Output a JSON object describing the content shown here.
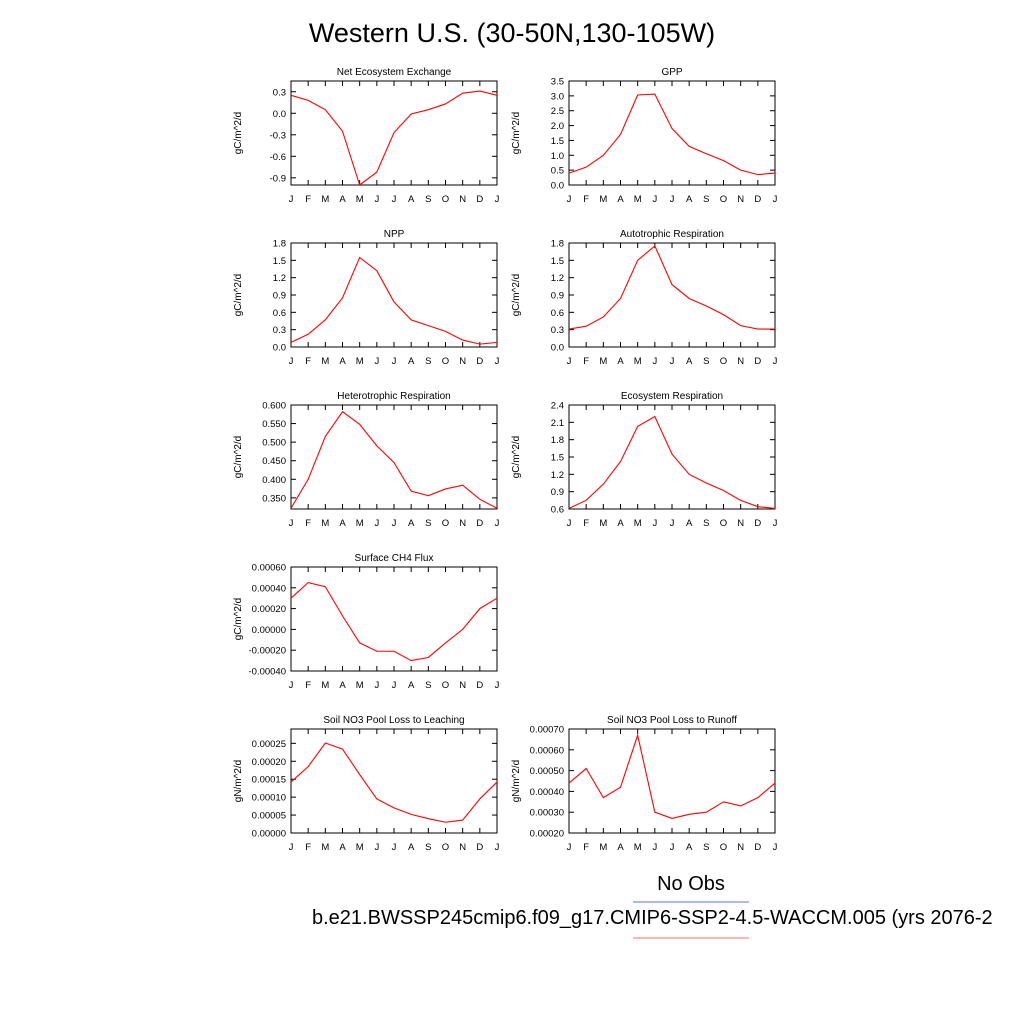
{
  "page": {
    "title": "Western U.S. (30-50N,130-105W)"
  },
  "legend": {
    "items": [
      {
        "label": "No Obs",
        "color": "#5b6ef0"
      },
      {
        "label": "b.e21.BWSSP245cmip6.f09_g17.CMIP6-SSP2-4.5-WACCM.005 (yrs 2076-2",
        "color": "#ff6b6b"
      }
    ]
  },
  "chart_data": [
    {
      "type": "line",
      "title": "Net Ecosystem Exchange",
      "ylabel": "gC/m^2/d",
      "categories": [
        "J",
        "F",
        "M",
        "A",
        "M",
        "J",
        "J",
        "A",
        "S",
        "O",
        "N",
        "D",
        "J"
      ],
      "ylim": [
        -1.0,
        0.45
      ],
      "yticks": [
        -0.9,
        -0.6,
        -0.3,
        0.0,
        0.3
      ],
      "ytick_labels": [
        "-0.9",
        "-0.6",
        "-0.3",
        "0.0",
        "0.3"
      ],
      "series": [
        {
          "values": [
            0.25,
            0.18,
            0.05,
            -0.25,
            -1.0,
            -0.82,
            -0.27,
            -0.01,
            0.05,
            0.13,
            0.28,
            0.31,
            0.25
          ],
          "color": "#ff0000"
        }
      ]
    },
    {
      "type": "line",
      "title": "GPP",
      "ylabel": "gC/m^2/d",
      "categories": [
        "J",
        "F",
        "M",
        "A",
        "M",
        "J",
        "J",
        "A",
        "S",
        "O",
        "N",
        "D",
        "J"
      ],
      "ylim": [
        0.0,
        3.5
      ],
      "yticks": [
        0.0,
        0.5,
        1.0,
        1.5,
        2.0,
        2.5,
        3.0,
        3.5
      ],
      "ytick_labels": [
        "0.0",
        "0.5",
        "1.0",
        "1.5",
        "2.0",
        "2.5",
        "3.0",
        "3.5"
      ],
      "series": [
        {
          "values": [
            0.4,
            0.6,
            1.0,
            1.7,
            3.03,
            3.06,
            1.9,
            1.3,
            1.05,
            0.82,
            0.5,
            0.35,
            0.4
          ],
          "color": "#ff0000"
        }
      ]
    },
    {
      "type": "line",
      "title": "NPP",
      "ylabel": "gC/m^2/d",
      "categories": [
        "J",
        "F",
        "M",
        "A",
        "M",
        "J",
        "J",
        "A",
        "S",
        "O",
        "N",
        "D",
        "J"
      ],
      "ylim": [
        0.0,
        1.8
      ],
      "yticks": [
        0.0,
        0.3,
        0.6,
        0.9,
        1.2,
        1.5,
        1.8
      ],
      "ytick_labels": [
        "0.0",
        "0.3",
        "0.6",
        "0.9",
        "1.2",
        "1.5",
        "1.8"
      ],
      "series": [
        {
          "values": [
            0.08,
            0.22,
            0.47,
            0.85,
            1.55,
            1.32,
            0.78,
            0.47,
            0.37,
            0.27,
            0.12,
            0.05,
            0.08
          ],
          "color": "#ff0000"
        }
      ]
    },
    {
      "type": "line",
      "title": "Autotrophic Respiration",
      "ylabel": "gC/m^2/d",
      "categories": [
        "J",
        "F",
        "M",
        "A",
        "M",
        "J",
        "J",
        "A",
        "S",
        "O",
        "N",
        "D",
        "J"
      ],
      "ylim": [
        0.0,
        1.8
      ],
      "yticks": [
        0.0,
        0.3,
        0.6,
        0.9,
        1.2,
        1.5,
        1.8
      ],
      "ytick_labels": [
        "0.0",
        "0.3",
        "0.6",
        "0.9",
        "1.2",
        "1.5",
        "1.8"
      ],
      "series": [
        {
          "values": [
            0.31,
            0.36,
            0.52,
            0.84,
            1.5,
            1.75,
            1.08,
            0.84,
            0.71,
            0.56,
            0.37,
            0.31,
            0.31
          ],
          "color": "#ff0000"
        }
      ]
    },
    {
      "type": "line",
      "title": "Heterotrophic Respiration",
      "ylabel": "gC/m^2/d",
      "categories": [
        "J",
        "F",
        "M",
        "A",
        "M",
        "J",
        "J",
        "A",
        "S",
        "O",
        "N",
        "D",
        "J"
      ],
      "ylim": [
        0.32,
        0.6
      ],
      "yticks": [
        0.35,
        0.4,
        0.45,
        0.5,
        0.55,
        0.6
      ],
      "ytick_labels": [
        "0.350",
        "0.400",
        "0.450",
        "0.500",
        "0.550",
        "0.600"
      ],
      "series": [
        {
          "values": [
            0.322,
            0.4,
            0.515,
            0.582,
            0.548,
            0.49,
            0.445,
            0.368,
            0.356,
            0.374,
            0.384,
            0.346,
            0.322
          ],
          "color": "#ff0000"
        }
      ]
    },
    {
      "type": "line",
      "title": "Ecosystem Respiration",
      "ylabel": "gC/m^2/d",
      "categories": [
        "J",
        "F",
        "M",
        "A",
        "M",
        "J",
        "J",
        "A",
        "S",
        "O",
        "N",
        "D",
        "J"
      ],
      "ylim": [
        0.6,
        2.4
      ],
      "yticks": [
        0.6,
        0.9,
        1.2,
        1.5,
        1.8,
        2.1,
        2.4
      ],
      "ytick_labels": [
        "0.6",
        "0.9",
        "1.2",
        "1.5",
        "1.8",
        "2.1",
        "2.4"
      ],
      "series": [
        {
          "values": [
            0.61,
            0.75,
            1.03,
            1.42,
            2.03,
            2.2,
            1.55,
            1.2,
            1.05,
            0.92,
            0.75,
            0.64,
            0.61
          ],
          "color": "#ff0000"
        }
      ]
    },
    {
      "type": "line",
      "title": "Surface CH4 Flux",
      "ylabel": "gC/m^2/d",
      "categories": [
        "J",
        "F",
        "M",
        "A",
        "M",
        "J",
        "J",
        "A",
        "S",
        "O",
        "N",
        "D",
        "J"
      ],
      "ylim": [
        -0.0004,
        0.0006
      ],
      "yticks": [
        -0.0004,
        -0.0002,
        0.0,
        0.0002,
        0.0004,
        0.0006
      ],
      "ytick_labels": [
        "-0.00040",
        "-0.00020",
        "0.00000",
        "0.00020",
        "0.00040",
        "0.00060"
      ],
      "series": [
        {
          "values": [
            0.0003,
            0.00045,
            0.00041,
            0.00013,
            -0.00013,
            -0.00021,
            -0.00021,
            -0.0003,
            -0.00027,
            -0.00013,
            0.0,
            0.0002,
            0.0003
          ],
          "color": "#ff0000"
        }
      ]
    },
    {
      "type": "line",
      "title": "Soil NO3 Pool Loss to Leaching",
      "ylabel": "gN/m^2/d",
      "categories": [
        "J",
        "F",
        "M",
        "A",
        "M",
        "J",
        "J",
        "A",
        "S",
        "O",
        "N",
        "D",
        "J"
      ],
      "ylim": [
        0.0,
        0.00029
      ],
      "yticks": [
        0.0,
        5e-05,
        0.0001,
        0.00015,
        0.0002,
        0.00025
      ],
      "ytick_labels": [
        "0.00000",
        "0.00005",
        "0.00010",
        "0.00015",
        "0.00020",
        "0.00025"
      ],
      "series": [
        {
          "values": [
            0.000142,
            0.000185,
            0.000251,
            0.000234,
            0.000163,
            9.5e-05,
            7e-05,
            5.2e-05,
            4e-05,
            3e-05,
            3.6e-05,
            9.5e-05,
            0.000142
          ],
          "color": "#ff0000"
        }
      ]
    },
    {
      "type": "line",
      "title": "Soil NO3 Pool Loss to Runoff",
      "ylabel": "gN/m^2/d",
      "categories": [
        "J",
        "F",
        "M",
        "A",
        "M",
        "J",
        "J",
        "A",
        "S",
        "O",
        "N",
        "D",
        "J"
      ],
      "ylim": [
        0.0002,
        0.0007
      ],
      "yticks": [
        0.0002,
        0.0003,
        0.0004,
        0.0005,
        0.0006,
        0.0007
      ],
      "ytick_labels": [
        "0.00020",
        "0.00030",
        "0.00040",
        "0.00050",
        "0.00060",
        "0.00070"
      ],
      "series": [
        {
          "values": [
            0.00044,
            0.00051,
            0.00037,
            0.00042,
            0.00067,
            0.0003,
            0.00027,
            0.00029,
            0.0003,
            0.00035,
            0.00033,
            0.00037,
            0.00044
          ],
          "color": "#ff0000"
        }
      ]
    }
  ]
}
